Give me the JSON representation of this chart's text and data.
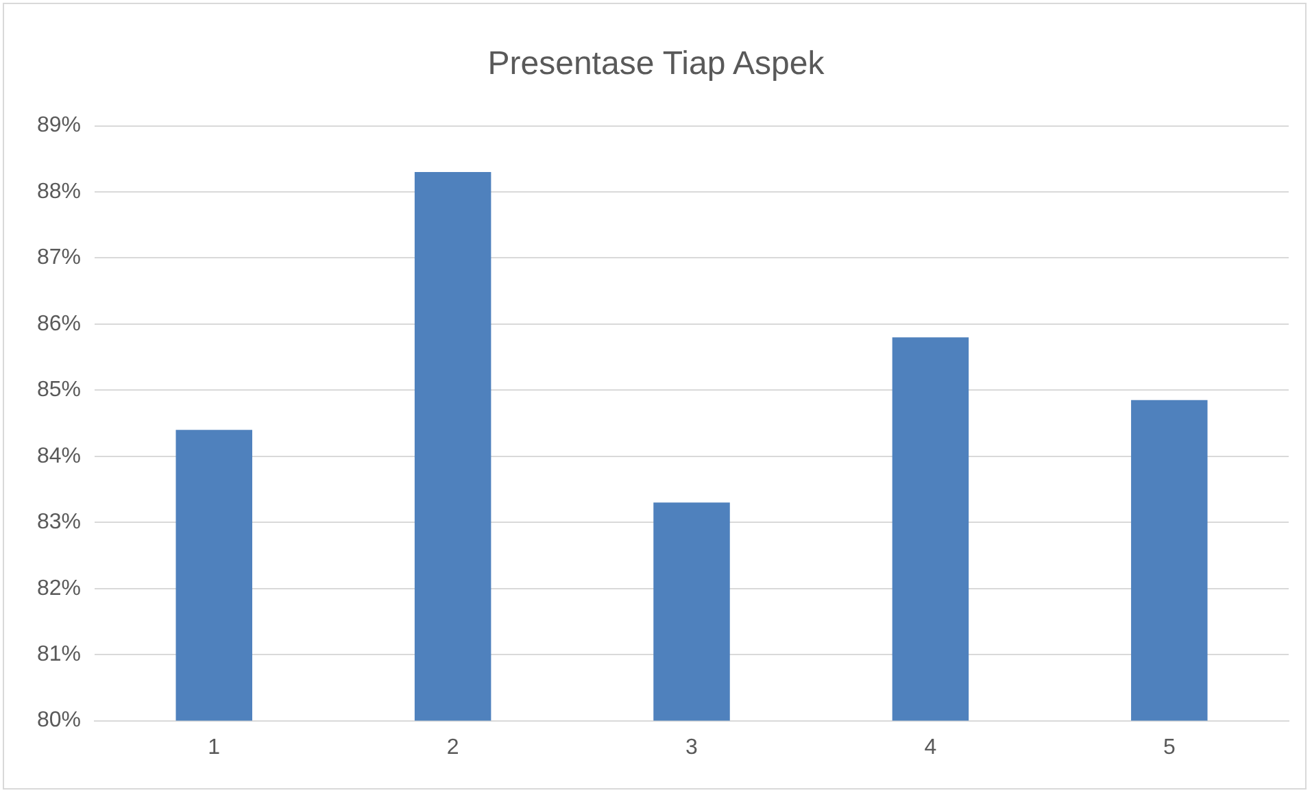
{
  "chart_data": {
    "type": "bar",
    "title": "Presentase Tiap Aspek",
    "categories": [
      "1",
      "2",
      "3",
      "4",
      "5"
    ],
    "values": [
      84.4,
      88.3,
      83.3,
      85.8,
      84.85
    ],
    "color": "#4f81bd",
    "ylim": [
      80,
      89
    ],
    "yticks": [
      {
        "value": 80,
        "label": "80%"
      },
      {
        "value": 81,
        "label": "81%"
      },
      {
        "value": 82,
        "label": "82%"
      },
      {
        "value": 83,
        "label": "83%"
      },
      {
        "value": 84,
        "label": "84%"
      },
      {
        "value": 85,
        "label": "85%"
      },
      {
        "value": 86,
        "label": "86%"
      },
      {
        "value": 87,
        "label": "87%"
      },
      {
        "value": 88,
        "label": "88%"
      },
      {
        "value": 89,
        "label": "89%"
      }
    ],
    "grid": "y",
    "legend": false
  }
}
